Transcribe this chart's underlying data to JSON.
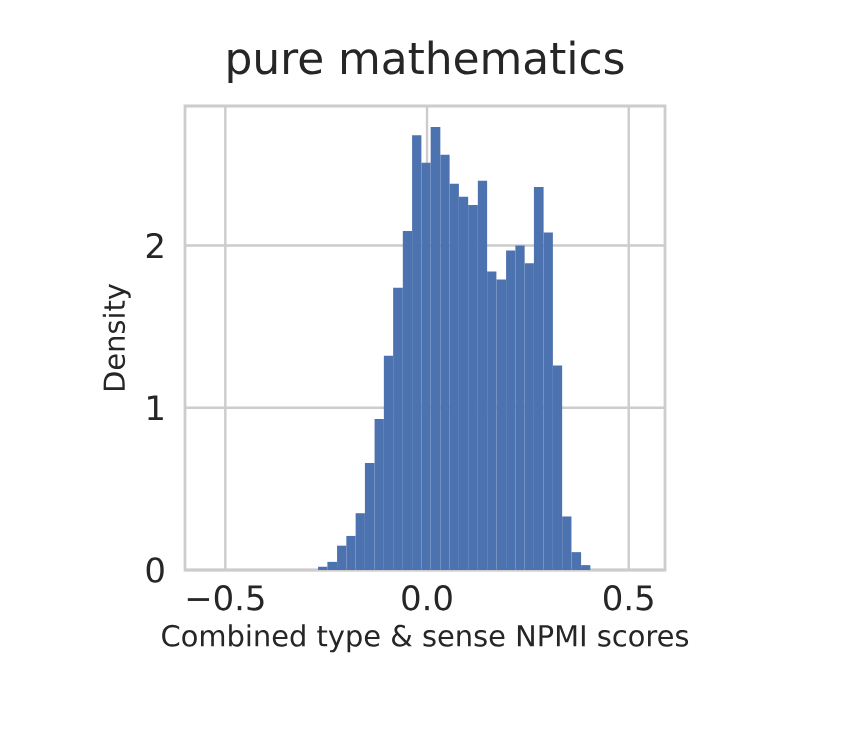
{
  "chart_data": {
    "type": "histogram",
    "title": "pure mathematics",
    "xlabel": "Combined type & sense NPMI scores",
    "ylabel": "Density",
    "bins": [
      -0.27,
      -0.247,
      -0.223,
      -0.2,
      -0.177,
      -0.154,
      -0.13,
      -0.107,
      -0.084,
      -0.06,
      -0.037,
      -0.014,
      0.009,
      0.033,
      0.056,
      0.079,
      0.102,
      0.126,
      0.149,
      0.172,
      0.196,
      0.219,
      0.242,
      0.265,
      0.289,
      0.312,
      0.335,
      0.358,
      0.382,
      0.405
    ],
    "values": [
      0.02,
      0.05,
      0.15,
      0.21,
      0.35,
      0.66,
      0.93,
      1.32,
      1.74,
      2.09,
      2.68,
      2.51,
      2.73,
      2.56,
      2.38,
      2.3,
      2.25,
      2.4,
      1.84,
      1.79,
      1.97,
      2.0,
      1.89,
      2.36,
      2.08,
      1.26,
      0.33,
      0.11,
      0.03
    ],
    "color": "#4c72b0",
    "xlim": [
      -0.6,
      0.59
    ],
    "ylim": [
      0,
      2.86
    ],
    "xticks": [
      {
        "value": -0.5,
        "label": "−0.5"
      },
      {
        "value": 0.0,
        "label": "0.0"
      },
      {
        "value": 0.5,
        "label": "0.5"
      }
    ],
    "yticks": [
      0,
      1,
      2
    ],
    "grid": true
  }
}
